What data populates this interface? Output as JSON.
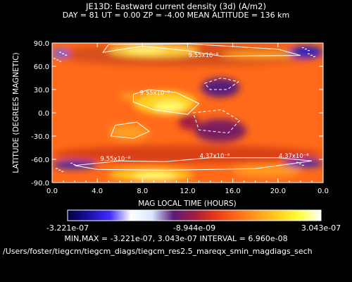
{
  "chart_data": {
    "type": "heatmap",
    "title": "JE13D: Eastward current density (3d) (A/m2)",
    "subtitle": "DAY =   81   UT =   0.00   ZP =   -4.00   MEAN ALTITUDE = 136 km",
    "xlabel": "MAG LOCAL TIME (HOURS)",
    "ylabel": "LATITUDE (DEGREES MAGNETIC)",
    "xlim": [
      0,
      24
    ],
    "ylim": [
      -90,
      90
    ],
    "x_ticks": [
      "0.0",
      "4.0",
      "8.0",
      "12.0",
      "16.0",
      "20.0",
      "0.0"
    ],
    "y_ticks": [
      "90.0",
      "60.0",
      "30.0",
      "0.0",
      "-30.0",
      "-60.0",
      "-90.0"
    ],
    "contour_labels": [
      {
        "text": "9.55x10⁻⁸",
        "x": 13.4,
        "y": 72
      },
      {
        "text": "9.55x10⁻⁸",
        "x": 9.1,
        "y": 23
      },
      {
        "text": "9.55x10⁻⁸",
        "x": 5.6,
        "y": -62
      },
      {
        "text": "4.37x10⁻⁸",
        "x": 14.4,
        "y": -58
      },
      {
        "text": "4.37x10⁻⁸",
        "x": 21.4,
        "y": -58
      }
    ],
    "colorbar": {
      "min_label": "-3.221e-07",
      "mid_label": "-8.944e-09",
      "max_label": "3.043e-07",
      "colors": [
        "#000040",
        "#1a0fa0",
        "#3f2cff",
        "#ffffff",
        "#d8e8ff",
        "#5a1c7a",
        "#a01c40",
        "#e83818",
        "#ff6a1a",
        "#ff9e20",
        "#ffd020",
        "#ffff40",
        "#ffffff"
      ]
    },
    "stats": "MIN,MAX = -3.221e-07, 3.043e-07 INTERVAL =  6.960e-08"
  },
  "footer_path": "/Users/foster/tiegcm/tiegcm_diags/tiegcm_res2.5_mareqx_smin_magdiags_sech"
}
